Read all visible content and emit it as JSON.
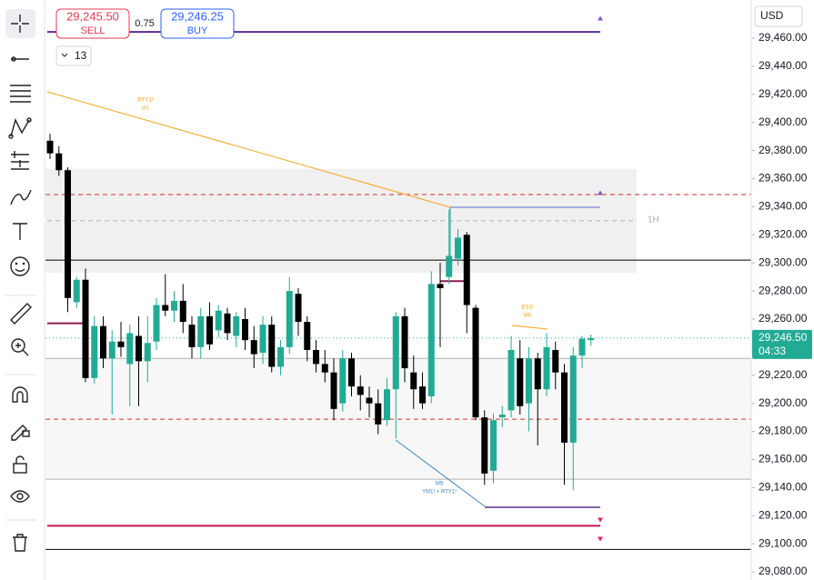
{
  "chart_data": {
    "type": "candlestick",
    "currency": "USD",
    "ylim": [
      29074.2,
      29487.2
    ],
    "yticks": [
      {
        "value": 29460,
        "label": "29,460.00"
      },
      {
        "value": 29440,
        "label": "29,440.00"
      },
      {
        "value": 29420,
        "label": "29,420.00"
      },
      {
        "value": 29400,
        "label": "29,400.00"
      },
      {
        "value": 29380,
        "label": "29,380.00"
      },
      {
        "value": 29360,
        "label": "29,360.00"
      },
      {
        "value": 29340,
        "label": "29,340.00"
      },
      {
        "value": 29320,
        "label": "29,320.00"
      },
      {
        "value": 29300,
        "label": "29,300.00"
      },
      {
        "value": 29280,
        "label": "29,280.00"
      },
      {
        "value": 29260,
        "label": "29,260.00"
      },
      {
        "value": 29240,
        "label": "29,240.00"
      },
      {
        "value": 29220,
        "label": "29,220.00"
      },
      {
        "value": 29200,
        "label": "29,200.00"
      },
      {
        "value": 29180,
        "label": "29,180.00"
      },
      {
        "value": 29160,
        "label": "29,160.00"
      },
      {
        "value": 29140,
        "label": "29,140.00"
      },
      {
        "value": 29120,
        "label": "29,120.00"
      },
      {
        "value": 29100,
        "label": "29,100.00"
      },
      {
        "value": 29080,
        "label": "29,080.00"
      }
    ],
    "up_color": "#22ab94",
    "down_color": "#000000",
    "open": [
      29387,
      29378,
      29366,
      29272,
      29288,
      29218,
      29255,
      29232,
      29244,
      29228,
      29248,
      29230,
      29244,
      29270,
      29266,
      29273,
      29256,
      29240,
      29262,
      29252,
      29264,
      29248,
      29260,
      29245,
      29236,
      29256,
      29226,
      29240,
      29278,
      29258,
      29238,
      29228,
      29222,
      29200,
      29232,
      29212,
      29204,
      29200,
      29188,
      29210,
      29262,
      29222,
      29212,
      29205,
      29285,
      29290,
      29303,
      29320,
      29268,
      29190,
      29152,
      29190,
      29195,
      29232,
      29200,
      29232,
      29210,
      29238,
      29222,
      29172,
      29234,
      29245
    ],
    "high": [
      29392,
      29383,
      29368,
      29290,
      29296,
      29262,
      29262,
      29252,
      29258,
      29256,
      29262,
      29262,
      29275,
      29292,
      29280,
      29285,
      29262,
      29268,
      29272,
      29270,
      29268,
      29265,
      29268,
      29255,
      29262,
      29262,
      29245,
      29290,
      29282,
      29262,
      29245,
      29238,
      29232,
      29238,
      29236,
      29220,
      29212,
      29210,
      29218,
      29265,
      29268,
      29234,
      29222,
      29294,
      29300,
      29338,
      29324,
      29322,
      29270,
      29195,
      29193,
      29198,
      29248,
      29245,
      29240,
      29236,
      29250,
      29244,
      29228,
      29240,
      29248,
      29249
    ],
    "low": [
      29374,
      29362,
      29265,
      29268,
      29215,
      29214,
      29225,
      29192,
      29233,
      29198,
      29198,
      29215,
      29238,
      29262,
      29258,
      29250,
      29232,
      29232,
      29238,
      29247,
      29245,
      29240,
      29238,
      29225,
      29228,
      29222,
      29220,
      29235,
      29248,
      29230,
      29222,
      29215,
      29188,
      29194,
      29205,
      29195,
      29190,
      29178,
      29184,
      29175,
      29215,
      29196,
      29196,
      29200,
      29240,
      29285,
      29298,
      29250,
      29188,
      29142,
      29143,
      29183,
      29190,
      29192,
      29180,
      29170,
      29205,
      29210,
      29142,
      29138,
      29225,
      29241
    ],
    "close": [
      29378,
      29366,
      29275,
      29288,
      29218,
      29255,
      29232,
      29244,
      29240,
      29250,
      29230,
      29243,
      29270,
      29266,
      29273,
      29258,
      29240,
      29262,
      29242,
      29266,
      29250,
      29262,
      29245,
      29235,
      29256,
      29226,
      29240,
      29280,
      29258,
      29238,
      29228,
      29222,
      29196,
      29232,
      29212,
      29206,
      29200,
      29185,
      29210,
      29262,
      29225,
      29210,
      29200,
      29285,
      29282,
      29305,
      29318,
      29270,
      29190,
      29150,
      29188,
      29192,
      29238,
      29198,
      29232,
      29210,
      29240,
      29222,
      29172,
      29234,
      29246,
      29246.5
    ],
    "last_price": 29246.5,
    "last_price_label": "29,246.50",
    "countdown": "04:33",
    "levels": [
      {
        "value": 29464.5,
        "color": "#5b2c8f"
      },
      {
        "value": 29348.7,
        "color": "#d32f2f",
        "dash": true
      },
      {
        "value": 29330,
        "color": "#b0b0b0",
        "dash": true
      },
      {
        "value": 29302,
        "color": "#000000"
      },
      {
        "value": 29257,
        "color": "#8e1a4e"
      },
      {
        "value": 29287,
        "color": "#8e1a4e"
      },
      {
        "value": 29232,
        "color": "#b0b0b0"
      },
      {
        "value": 29188.7,
        "color": "#d32f2f",
        "dash": true
      },
      {
        "value": 29146,
        "color": "#b0b0b0"
      },
      {
        "value": 29126,
        "color": "#5b2c8f"
      },
      {
        "value": 29112.8,
        "color": "#c2185b"
      },
      {
        "value": 29096,
        "color": "#000000"
      }
    ],
    "zones": [
      [
        29367,
        29293
      ],
      [
        29232,
        29146
      ]
    ],
    "annotations": [
      "RTY1!",
      "H1",
      "1H",
      "ES1!",
      "M5",
      "M5",
      "YM1! + RTY1!"
    ],
    "order_panel": {
      "sell_price": "29,245.50",
      "sell": "SELL",
      "spread": "0.75",
      "buy_price": "29,246.25",
      "buy": "BUY",
      "quantity": "13"
    }
  }
}
